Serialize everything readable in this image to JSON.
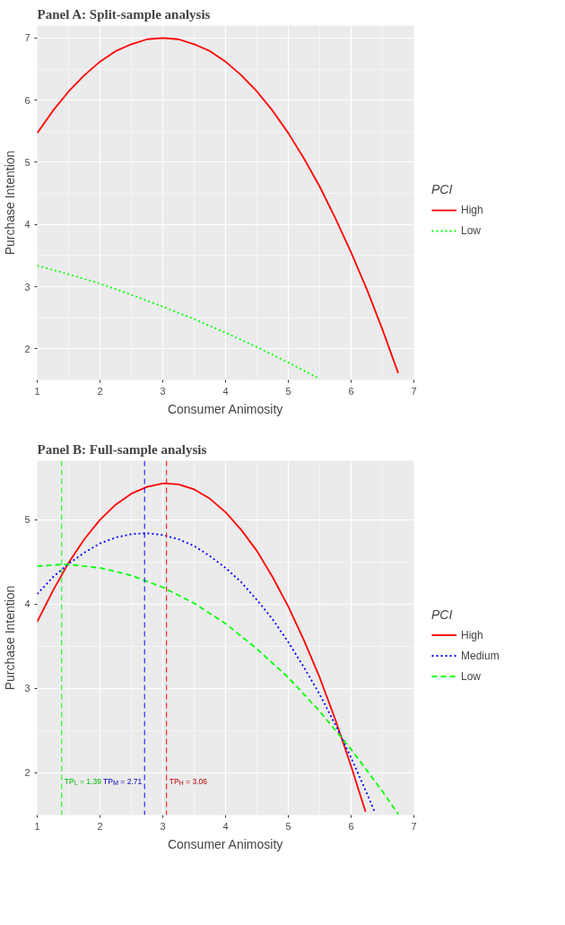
{
  "chart_data": [
    {
      "type": "line",
      "title": "Panel A: Split-sample analysis",
      "xlabel": "Consumer Animosity",
      "ylabel": "Purchase Intention",
      "legend_title": "PCI",
      "legend": "right",
      "grid": true,
      "xlim": [
        1,
        7
      ],
      "ylim": [
        1.5,
        7.2
      ],
      "xticks": [
        1,
        2,
        3,
        4,
        5,
        6,
        7
      ],
      "yticks": [
        2,
        3,
        4,
        5,
        6,
        7
      ],
      "series": [
        {
          "name": "High",
          "color": "#ff0000",
          "line_style": "solid",
          "x": [
            1,
            1.25,
            1.5,
            1.75,
            2,
            2.25,
            2.5,
            2.75,
            3,
            3.25,
            3.5,
            3.75,
            4,
            4.25,
            4.5,
            4.75,
            5,
            5.25,
            5.5,
            5.75,
            6,
            6.25,
            6.5,
            6.75
          ],
          "values": [
            5.47,
            5.83,
            6.14,
            6.4,
            6.62,
            6.79,
            6.9,
            6.98,
            7,
            6.98,
            6.9,
            6.79,
            6.62,
            6.4,
            6.14,
            5.83,
            5.47,
            5.06,
            4.61,
            4.1,
            3.55,
            2.96,
            2.31,
            1.61
          ]
        },
        {
          "name": "Low",
          "color": "#00ff00",
          "line_style": "dotted",
          "x": [
            1,
            1.5,
            2,
            2.5,
            3,
            3.5,
            4,
            4.5,
            5,
            5.5
          ],
          "values": [
            3.34,
            3.2,
            3.05,
            2.87,
            2.68,
            2.48,
            2.26,
            2.03,
            1.78,
            1.52
          ]
        }
      ]
    },
    {
      "type": "line",
      "title": "Panel B: Full-sample analysis",
      "xlabel": "Consumer Animosity",
      "ylabel": "Purchase Intention",
      "legend_title": "PCI",
      "legend": "right",
      "grid": true,
      "xlim": [
        1,
        7
      ],
      "ylim": [
        1.5,
        5.7
      ],
      "xticks": [
        1,
        2,
        3,
        4,
        5,
        6,
        7
      ],
      "yticks": [
        2,
        3,
        4,
        5
      ],
      "series": [
        {
          "name": "High",
          "color": "#ff0000",
          "line_style": "solid",
          "x": [
            1,
            1.25,
            1.5,
            1.75,
            2,
            2.25,
            2.5,
            2.75,
            3,
            3.06,
            3.25,
            3.5,
            3.75,
            4,
            4.25,
            4.5,
            4.75,
            5,
            5.25,
            5.5,
            5.75,
            6,
            6.23
          ],
          "values": [
            3.79,
            4.16,
            4.49,
            4.77,
            5.0,
            5.18,
            5.31,
            5.39,
            5.43,
            5.43,
            5.42,
            5.36,
            5.25,
            5.09,
            4.88,
            4.63,
            4.32,
            3.97,
            3.57,
            3.13,
            2.63,
            2.08,
            1.54
          ]
        },
        {
          "name": "Medium",
          "color": "#0000ff",
          "line_style": "dotted",
          "x": [
            1,
            1.25,
            1.5,
            1.75,
            2,
            2.25,
            2.5,
            2.71,
            2.75,
            3,
            3.25,
            3.5,
            3.75,
            4,
            4.25,
            4.5,
            4.75,
            5,
            5.25,
            5.5,
            5.75,
            6,
            6.25,
            6.38
          ],
          "values": [
            4.12,
            4.32,
            4.48,
            4.61,
            4.72,
            4.79,
            4.83,
            4.84,
            4.84,
            4.82,
            4.77,
            4.69,
            4.57,
            4.43,
            4.26,
            4.05,
            3.82,
            3.55,
            3.25,
            2.93,
            2.57,
            2.18,
            1.76,
            1.53
          ]
        },
        {
          "name": "Low",
          "color": "#00ff00",
          "line_style": "dashed",
          "x": [
            1,
            1.39,
            1.5,
            2,
            2.5,
            3,
            3.5,
            4,
            4.5,
            5,
            5.5,
            6,
            6.5,
            6.75
          ],
          "values": [
            4.45,
            4.47,
            4.47,
            4.43,
            4.34,
            4.2,
            4.01,
            3.77,
            3.47,
            3.13,
            2.73,
            2.28,
            1.78,
            1.51
          ]
        }
      ],
      "ref_lines": [
        {
          "axis": "x",
          "value": 1.39,
          "color": "#00ff00",
          "line_style": "dashed",
          "label": "TP$_{L}$ = 1.39"
        },
        {
          "axis": "x",
          "value": 2.71,
          "color": "#0000ff",
          "line_style": "dashed",
          "label": "TP$_{M}$ = 2.71"
        },
        {
          "axis": "x",
          "value": 3.06,
          "color": "#ff0000",
          "line_style": "dashed",
          "label": "TP$_{H}$ = 3.06"
        }
      ]
    }
  ]
}
